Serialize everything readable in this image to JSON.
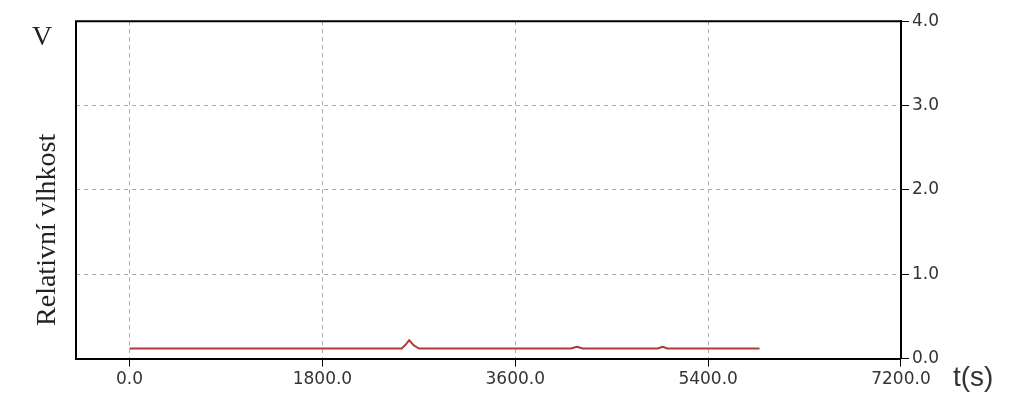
{
  "chart_data": {
    "type": "line",
    "ylabel": "Relativní vlhkost",
    "xlabel": "t(s)",
    "annotations": [
      "V"
    ],
    "series": [
      {
        "color": "#b03a3a",
        "x": [
          0,
          2540,
          2580,
          2610,
          2650,
          2700,
          4120,
          4175,
          4230,
          4930,
          4975,
          5020,
          5880
        ],
        "values": [
          0.12,
          0.12,
          0.17,
          0.22,
          0.16,
          0.12,
          0.12,
          0.14,
          0.12,
          0.12,
          0.14,
          0.12,
          0.12
        ]
      }
    ],
    "xlim": [
      -500,
      7200
    ],
    "xticks": [
      {
        "value": 0,
        "label": "0.0"
      },
      {
        "value": 1800,
        "label": "1800.0"
      },
      {
        "value": 3600,
        "label": "3600.0"
      },
      {
        "value": 5400,
        "label": "5400.0"
      },
      {
        "value": 7200,
        "label": "7200.0"
      }
    ],
    "ylim": [
      0,
      4
    ],
    "yticks": [
      {
        "value": 0,
        "label": "0.0"
      },
      {
        "value": 1,
        "label": "1.0"
      },
      {
        "value": 2,
        "label": "2.0"
      },
      {
        "value": 3,
        "label": "3.0"
      },
      {
        "value": 4,
        "label": "4.0"
      }
    ],
    "grid": true,
    "marker": "none",
    "line_style": "solid",
    "legend": false
  }
}
